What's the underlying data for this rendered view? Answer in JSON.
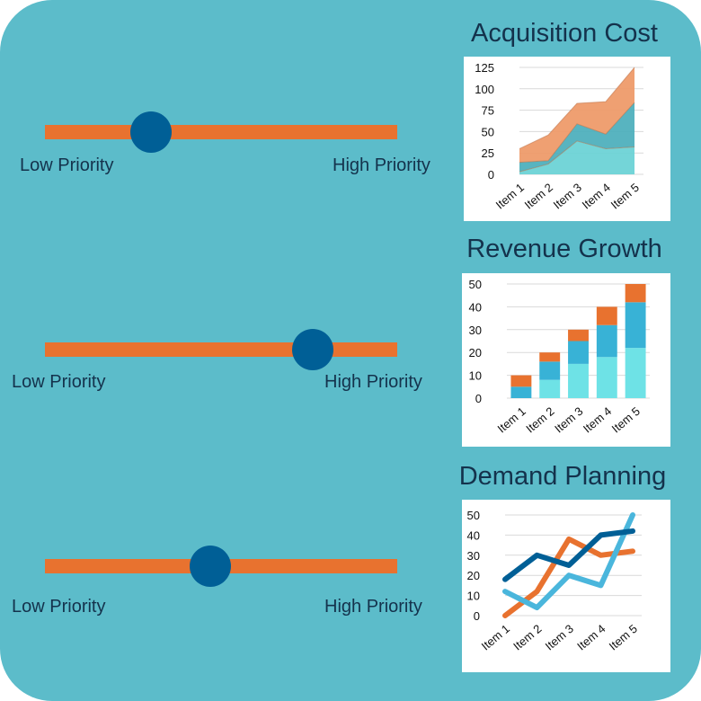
{
  "sliders": [
    {
      "low_label": "Low Priority",
      "high_label": "High Priority",
      "value": 0.3
    },
    {
      "low_label": "Low Priority",
      "high_label": "High Priority",
      "value": 0.76
    },
    {
      "low_label": "Low Priority",
      "high_label": "High Priority",
      "value": 0.47
    }
  ],
  "colors": {
    "background": "#5cbcca",
    "track": "#e8722f",
    "knob": "#005f96",
    "text": "#14324c"
  },
  "chart_data": [
    {
      "type": "area",
      "title": "Acquisition Cost",
      "categories": [
        "Item 1",
        "Item 2",
        "Item 3",
        "Item 4",
        "Item 5"
      ],
      "ylim": [
        0,
        125
      ],
      "yticks": [
        0,
        25,
        50,
        75,
        100,
        125
      ],
      "grid": true,
      "stacked": true,
      "series": [
        {
          "color": "#6dd3d6",
          "values": [
            3,
            12,
            39,
            30,
            32
          ]
        },
        {
          "color": "#4fb0bd",
          "values": [
            11,
            4,
            20,
            17,
            52
          ]
        },
        {
          "color": "#ee9b6a",
          "values": [
            16,
            30,
            24,
            38,
            41
          ]
        }
      ]
    },
    {
      "type": "bar",
      "title": "Revenue Growth",
      "categories": [
        "Item 1",
        "Item 2",
        "Item 3",
        "Item 4",
        "Item 5"
      ],
      "ylim": [
        0,
        50
      ],
      "yticks": [
        0,
        10,
        20,
        30,
        40,
        50
      ],
      "grid": true,
      "stacked": true,
      "series": [
        {
          "color": "#6ee2e6",
          "values": [
            0,
            8,
            15,
            18,
            22
          ]
        },
        {
          "color": "#38b2d6",
          "values": [
            5,
            8,
            10,
            14,
            20
          ]
        },
        {
          "color": "#e8722f",
          "values": [
            5,
            4,
            5,
            8,
            8
          ]
        }
      ]
    },
    {
      "type": "line",
      "title": "Demand Planning",
      "categories": [
        "Item 1",
        "Item 2",
        "Item 3",
        "Item 4",
        "Item 5"
      ],
      "ylim": [
        0,
        50
      ],
      "yticks": [
        0,
        10,
        20,
        30,
        40,
        50
      ],
      "grid": true,
      "series": [
        {
          "color": "#e8722f",
          "values": [
            0,
            12,
            38,
            30,
            32
          ]
        },
        {
          "color": "#4ab6dc",
          "values": [
            12,
            4,
            20,
            15,
            50
          ]
        },
        {
          "color": "#005f96",
          "values": [
            18,
            30,
            25,
            40,
            42
          ]
        }
      ]
    }
  ]
}
